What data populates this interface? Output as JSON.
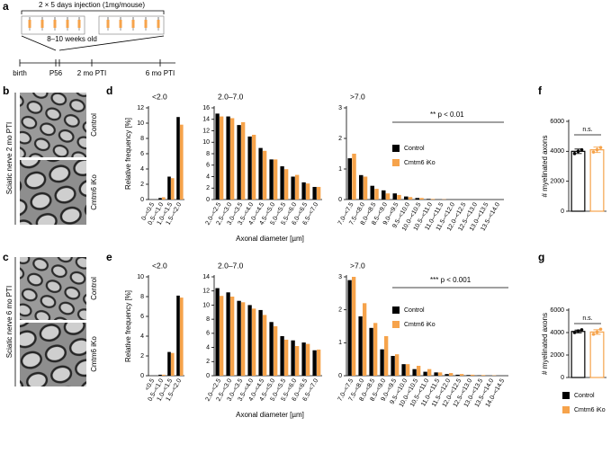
{
  "figure": {
    "panels": [
      "a",
      "b",
      "c",
      "d",
      "e",
      "f",
      "g"
    ],
    "timeline": {
      "injection": "2 × 5 days injection (1mg/mouse)",
      "age": "8–10 weeks old",
      "points": [
        "birth",
        "P56",
        "2 mo PTI",
        "6 mo PTI"
      ]
    },
    "images": [
      {
        "region": "Sciatic nerve 2 mo PTI",
        "labels": [
          "Control",
          "Cmtm6 iKo"
        ]
      },
      {
        "region": "Sciatic nerve 6 mo PTI",
        "labels": [
          "Control",
          "Cmtm6 iKo"
        ]
      }
    ]
  },
  "chart_data": [
    {
      "type": "bar",
      "title": "<2.0",
      "y_label": "Relative frequency [%]",
      "categories": [
        "0–<0.5",
        "0.5–<1.0",
        "1.0–<1.5",
        "1.5–<2.0"
      ],
      "series": [
        {
          "color": "#000000",
          "values": [
            0,
            0.2,
            3,
            10.8
          ]
        },
        {
          "color": "#f6a34b",
          "values": [
            0,
            0.3,
            2.8,
            9.8
          ]
        }
      ],
      "ylim": [
        0,
        12
      ],
      "yticks": [
        0,
        2,
        4,
        6,
        8,
        10,
        12
      ]
    },
    {
      "type": "bar",
      "title": "2.0–7.0",
      "x_label": "Axonal diameter [µm]",
      "categories": [
        "2.0–<2.5",
        "2.5–<3.0",
        "3.0–<3.5",
        "3.5–<4.0",
        "4.0–<4.5",
        "4.5–<5.0",
        "5.0–<5.5",
        "5.5–<6.0",
        "6.0–<6.5",
        "6.5–<7.0"
      ],
      "series": [
        {
          "color": "#000000",
          "values": [
            15,
            14.5,
            13,
            11,
            9,
            7,
            5.8,
            4,
            3,
            2.2
          ]
        },
        {
          "color": "#f6a34b",
          "values": [
            14.5,
            14.2,
            13.5,
            11.3,
            8.5,
            7,
            5.3,
            4.3,
            2.8,
            2.2
          ]
        }
      ],
      "ylim": [
        0,
        16
      ],
      "yticks": [
        0,
        2,
        4,
        6,
        8,
        10,
        12,
        14,
        16
      ]
    },
    {
      "type": "bar",
      "title": ">7.0",
      "annotation": "** p < 0.01",
      "legend": "upper right",
      "categories": [
        "7.0–<7.5",
        "7.5–<8.0",
        "8.0–<8.5",
        "8.5–<9.0",
        "9.0–<9.5",
        "9.5–<10.0",
        "10.0–<10.5",
        "10.5–<11.0",
        "11.0–<11.5",
        "11.5–<12.0",
        "12.0–<12.5",
        "12.5–<13.0",
        "13.0–<13.5",
        "13.5–<14.0"
      ],
      "series": [
        {
          "name": "Control",
          "color": "#000000",
          "values": [
            1.35,
            0.8,
            0.45,
            0.3,
            0.2,
            0.1,
            0.05,
            0.02,
            0,
            0,
            0,
            0,
            0,
            0
          ]
        },
        {
          "name": "Cmtm6 iKo",
          "color": "#f6a34b",
          "values": [
            1.5,
            0.75,
            0.35,
            0.2,
            0.15,
            0.08,
            0.05,
            0.02,
            0.01,
            0,
            0,
            0,
            0,
            0
          ]
        }
      ],
      "ylim": [
        0,
        3
      ],
      "yticks": [
        0,
        1,
        2,
        3
      ]
    },
    {
      "type": "bar",
      "title": "<2.0",
      "y_label": "Relative frequency [%]",
      "categories": [
        "<0.5",
        "0.5–<1.0",
        "1.0–<1.5",
        "1.5–<2.0"
      ],
      "series": [
        {
          "color": "#000000",
          "values": [
            0,
            0.1,
            2.4,
            8.1
          ]
        },
        {
          "color": "#f6a34b",
          "values": [
            0,
            0.1,
            2.3,
            7.9
          ]
        }
      ],
      "ylim": [
        0,
        10
      ],
      "yticks": [
        0,
        2,
        4,
        6,
        8,
        10
      ]
    },
    {
      "type": "bar",
      "title": "2.0–7.0",
      "x_label": "Axonal diameter [µm]",
      "categories": [
        "2.0–<2.5",
        "2.5–<3.0",
        "3.0–<3.5",
        "3.5–<4.0",
        "4.0–<4.5",
        "4.5–<5.0",
        "5.0–<5.5",
        "5.5–<6.0",
        "6.0–<6.5",
        "6.5–<7.0"
      ],
      "series": [
        {
          "color": "#000000",
          "values": [
            12.4,
            11.8,
            10.6,
            10,
            9.3,
            7.6,
            5.6,
            5,
            4.7,
            3.6
          ]
        },
        {
          "color": "#f6a34b",
          "values": [
            11.3,
            11.2,
            10.4,
            9.5,
            8.6,
            7,
            5.1,
            4.2,
            4.5,
            3.7
          ]
        }
      ],
      "ylim": [
        0,
        14
      ],
      "yticks": [
        0,
        2,
        4,
        6,
        8,
        10,
        12,
        14
      ]
    },
    {
      "type": "bar",
      "title": ">7.0",
      "annotation": "*** p < 0.001",
      "legend": "upper right",
      "categories": [
        "7.0–<7.5",
        "7.5–<8.0",
        "8.0–<8.5",
        "8.5–<9.0",
        "9.0–<9.5",
        "9.5–<10.0",
        "10.0–<10.5",
        "10.5–<11.0",
        "11.0–<11.5",
        "11.5–<12.0",
        "12.0–<12.5",
        "12.5–<13.0",
        "13.0–<13.5",
        "13.5–<14.0",
        "14.0–<14.5"
      ],
      "series": [
        {
          "name": "Control",
          "color": "#000000",
          "values": [
            2.9,
            1.8,
            1.45,
            0.8,
            0.6,
            0.35,
            0.2,
            0.12,
            0.1,
            0.05,
            0.03,
            0.02,
            0.01,
            0,
            0
          ]
        },
        {
          "name": "Cmtm6 iKo",
          "color": "#f6a34b",
          "values": [
            3,
            2.2,
            1.6,
            1.2,
            0.65,
            0.35,
            0.3,
            0.2,
            0.1,
            0.08,
            0.05,
            0.03,
            0.02,
            0.01,
            0
          ]
        }
      ],
      "ylim": [
        0,
        3
      ],
      "yticks": [
        0,
        1,
        2,
        3
      ]
    },
    {
      "type": "bar_error",
      "y_label": "# myelinated axons",
      "annotation": "n.s.",
      "bar_style": "outline",
      "series": [
        {
          "color": "#000000",
          "values": [
            4000
          ],
          "errors": [
            150
          ],
          "points": [
            3850,
            4000,
            4100
          ]
        },
        {
          "color": "#f6a34b",
          "values": [
            4100
          ],
          "errors": [
            180
          ],
          "points": [
            3950,
            4100,
            4250
          ]
        }
      ],
      "ylim": [
        0,
        6000
      ],
      "yticks": [
        0,
        2000,
        4000,
        6000
      ]
    },
    {
      "type": "bar_error",
      "y_label": "# myelinated axons",
      "annotation": "n.s.",
      "bar_style": "outline",
      "legend": "below",
      "series": [
        {
          "name": "Control",
          "color": "#000000",
          "values": [
            4100
          ],
          "errors": [
            120
          ],
          "points": [
            4000,
            4150,
            4250
          ]
        },
        {
          "name": "Cmtm6 iKo",
          "color": "#f6a34b",
          "values": [
            4050
          ],
          "errors": [
            200
          ],
          "points": [
            3850,
            4050,
            4300
          ]
        }
      ],
      "ylim": [
        0,
        6000
      ],
      "yticks": [
        0,
        2000,
        4000,
        6000
      ]
    }
  ]
}
